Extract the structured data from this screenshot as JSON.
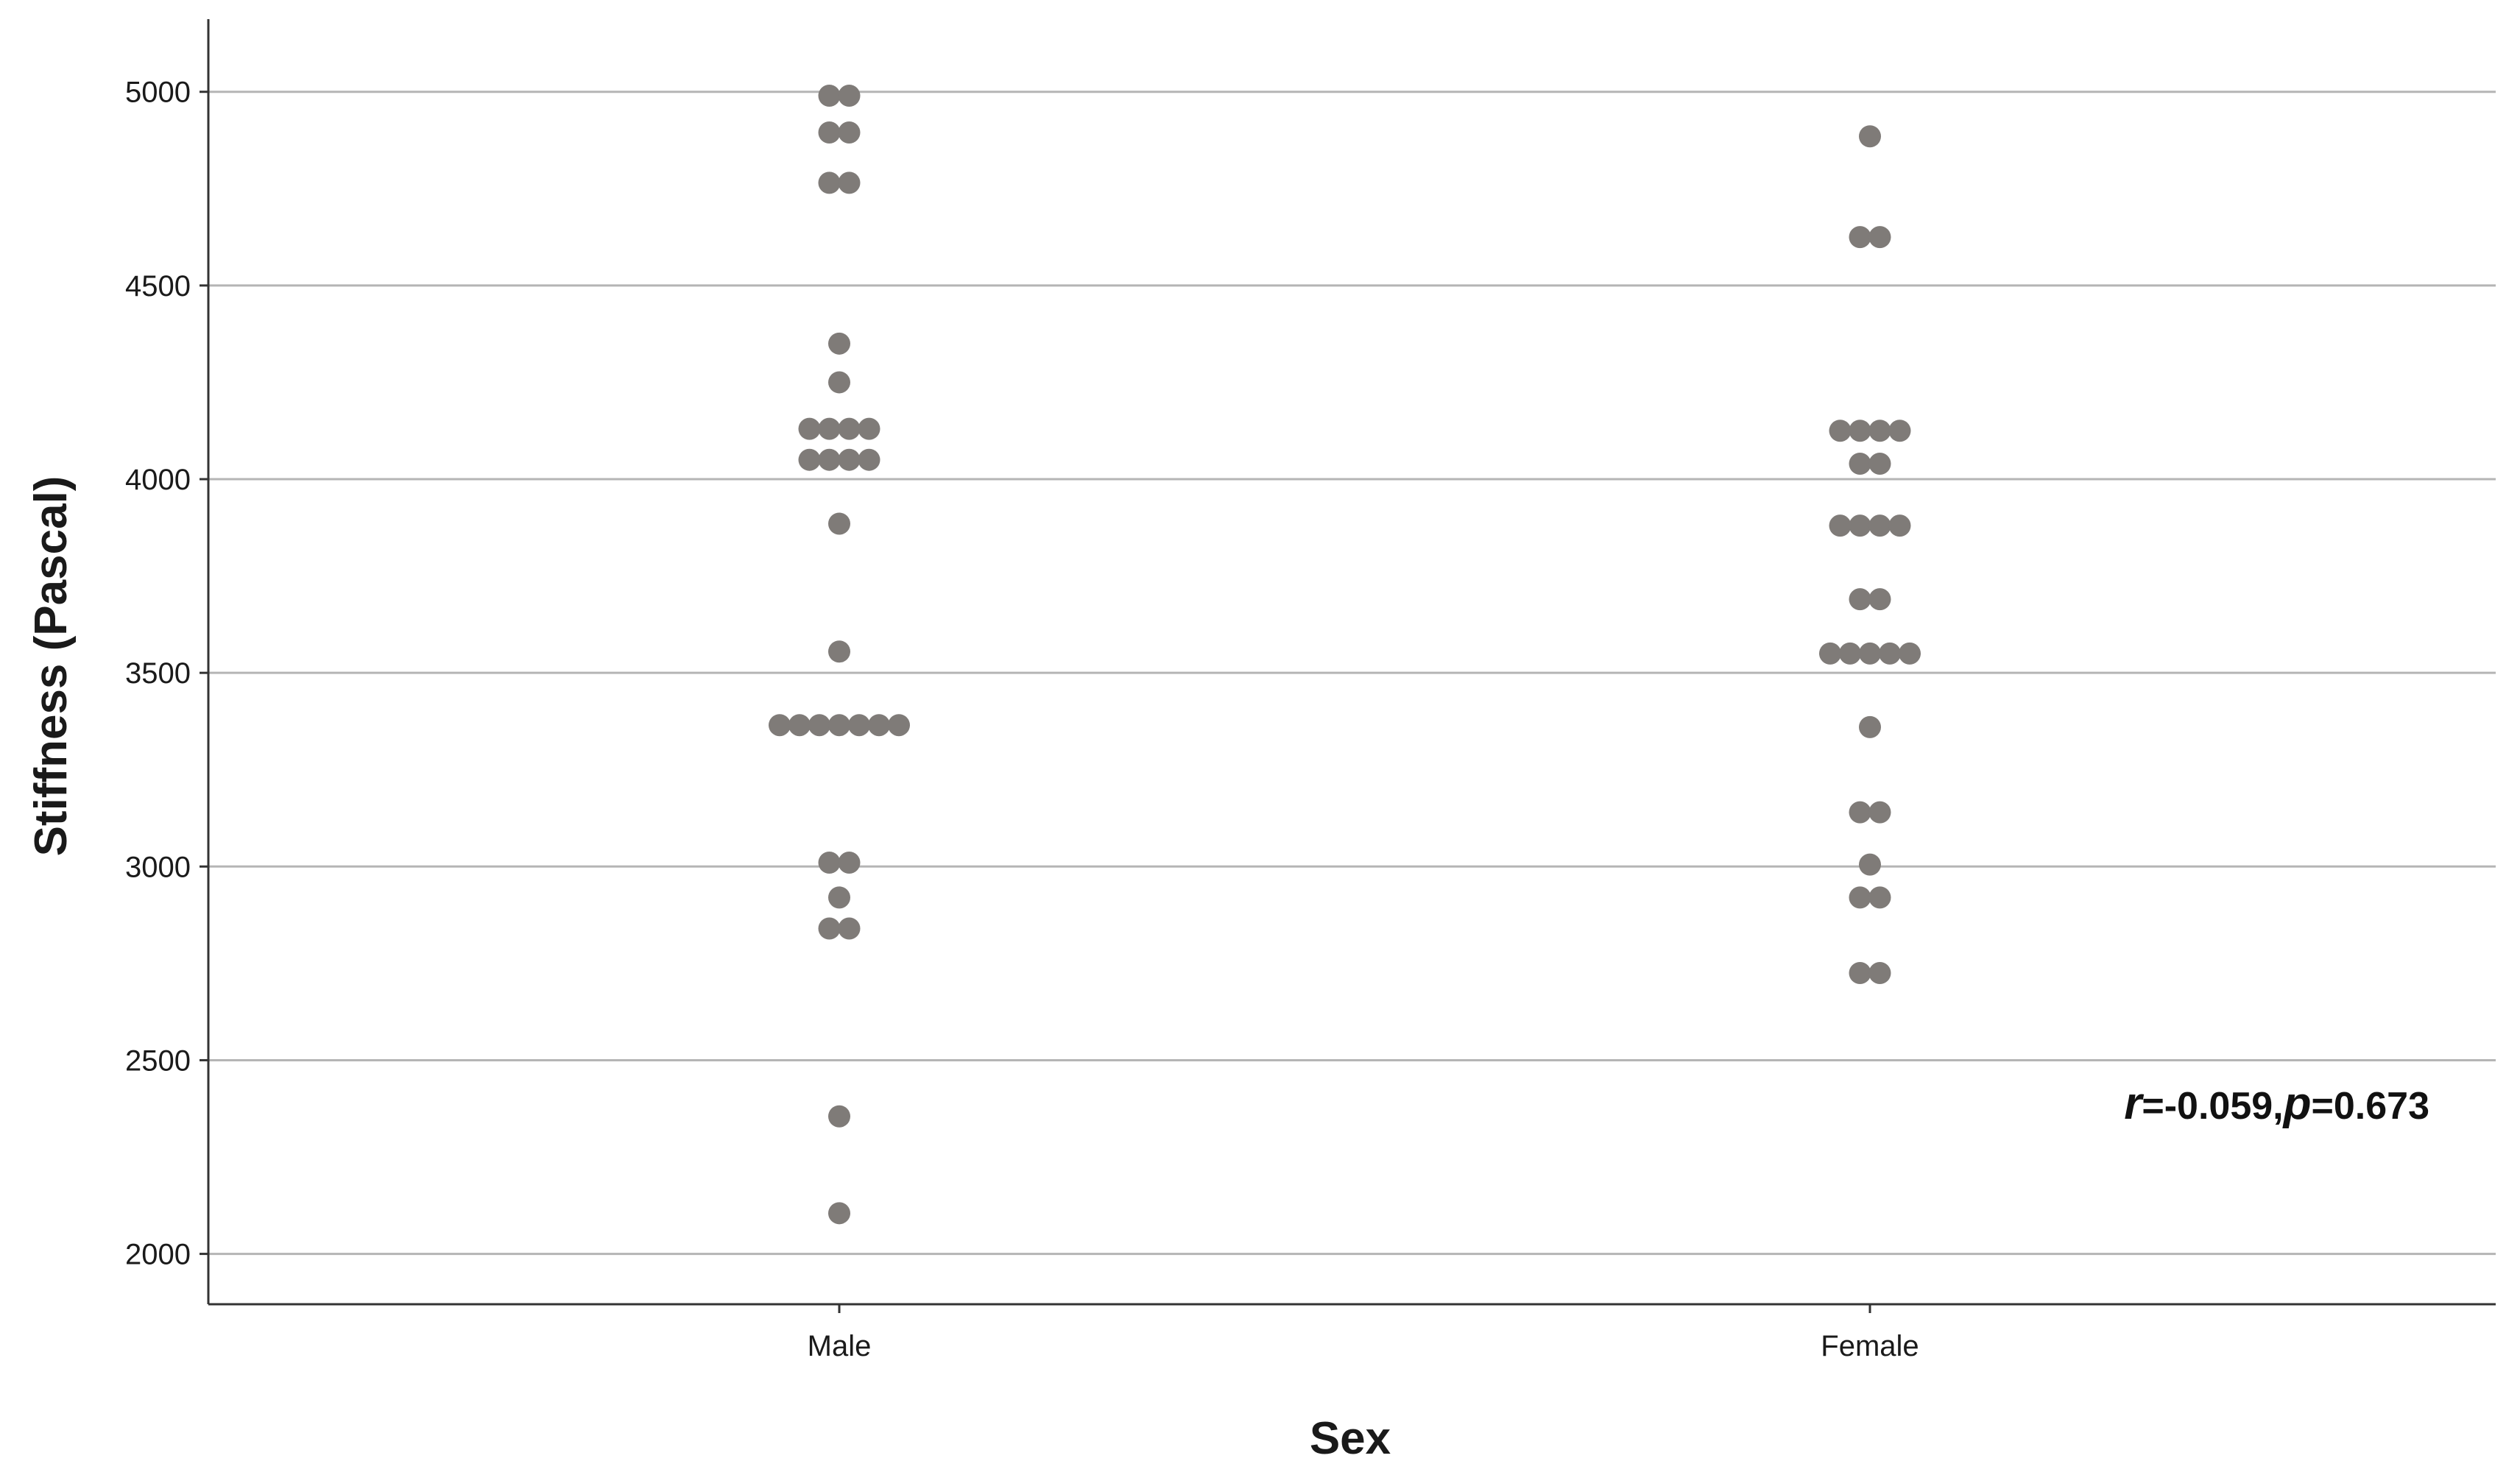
{
  "chart_data": {
    "type": "scatter",
    "title": "",
    "xlabel": "Sex",
    "ylabel": "Stiffness (Pascal)",
    "categories": [
      "Male",
      "Female"
    ],
    "ylim": [
      1870,
      5180
    ],
    "yticks": [
      2000,
      2500,
      3000,
      3500,
      4000,
      4500,
      5000
    ],
    "grid": "horizontal",
    "legend": "none",
    "point_color": "#7f7b78",
    "gridline_color": "#b5b5b5",
    "axis_color": "#333333",
    "annotation": {
      "r_symbol": "r",
      "r_value": "=-0.059,",
      "p_symbol": "p",
      "p_value": "=0.673"
    },
    "series": [
      {
        "category": "Male",
        "values": [
          4990,
          4990,
          4895,
          4895,
          4765,
          4765,
          4350,
          4250,
          4130,
          4130,
          4130,
          4130,
          4050,
          4050,
          4050,
          4050,
          3885,
          3555,
          3365,
          3365,
          3365,
          3365,
          3365,
          3365,
          3365,
          3010,
          3010,
          2920,
          2840,
          2840,
          2355,
          2105
        ]
      },
      {
        "category": "Female",
        "values": [
          4885,
          4625,
          4625,
          4125,
          4125,
          4125,
          4125,
          4040,
          4040,
          3880,
          3880,
          3880,
          3880,
          3690,
          3690,
          3550,
          3550,
          3550,
          3550,
          3550,
          3360,
          3140,
          3140,
          3005,
          2920,
          2920,
          2725,
          2725
        ]
      }
    ]
  }
}
